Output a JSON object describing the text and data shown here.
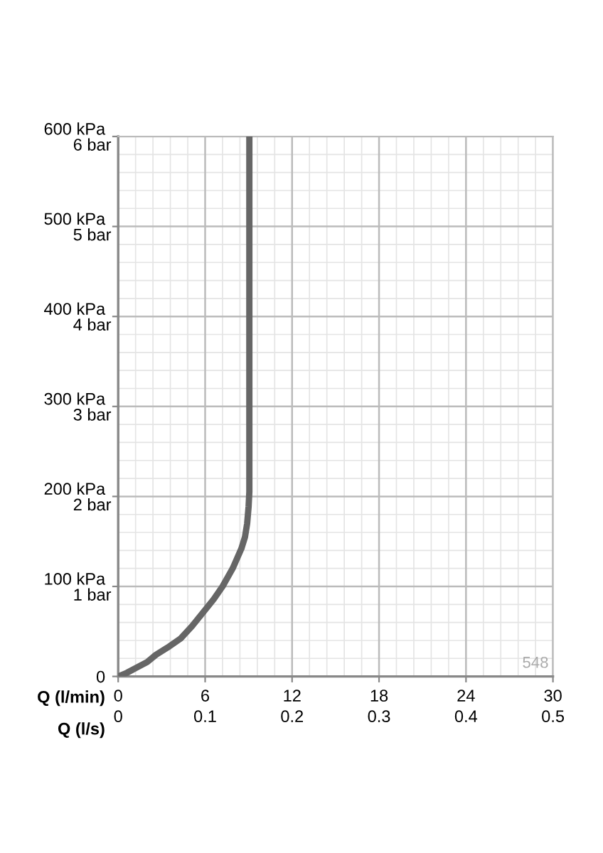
{
  "chart_data": {
    "type": "line",
    "xlabel": "Q (l/min)",
    "x2label": "Q (l/s)",
    "x": [
      0,
      0.6,
      1.3,
      2.0,
      2.6,
      3.4,
      4.3,
      5.1,
      6,
      6.6,
      7.2,
      7.9,
      8.5,
      8.75,
      8.9,
      9.0,
      9.05,
      9.05
    ],
    "series": [
      {
        "color": "#666666",
        "values": [
          0,
          4,
          10,
          16,
          24,
          32,
          42,
          56,
          74,
          86,
          100,
          120,
          142,
          155,
          170,
          189,
          205,
          600
        ]
      }
    ],
    "xlim": [
      0,
      30
    ],
    "xticks": [
      0,
      6,
      12,
      18,
      24,
      30
    ],
    "x2lim": [
      0,
      0.5
    ],
    "x2ticks": [
      0,
      0.1,
      0.2,
      0.3,
      0.4,
      0.5
    ],
    "ylim": [
      0,
      600
    ],
    "yticks": [
      0,
      {
        "value": 100,
        "label": "100 kPa"
      },
      {
        "value": 200,
        "label": "200 kPa"
      },
      {
        "value": 300,
        "label": "300 kPa"
      },
      {
        "value": 400,
        "label": "400 kPa"
      },
      {
        "value": 500,
        "label": "500 kPa"
      },
      {
        "value": 600,
        "label": "600 kPa"
      }
    ],
    "y2lim": [
      0,
      6
    ],
    "y2ticks": [
      {
        "value": 1,
        "label": "1 bar"
      },
      {
        "value": 2,
        "label": "2 bar"
      },
      {
        "value": 3,
        "label": "3 bar"
      },
      {
        "value": 4,
        "label": "4 bar"
      },
      {
        "value": 5,
        "label": "5 bar"
      },
      {
        "value": 6,
        "label": "6 bar"
      }
    ],
    "grid": true,
    "marker": "none",
    "line_style": "solid",
    "annotations": [
      "548"
    ]
  }
}
